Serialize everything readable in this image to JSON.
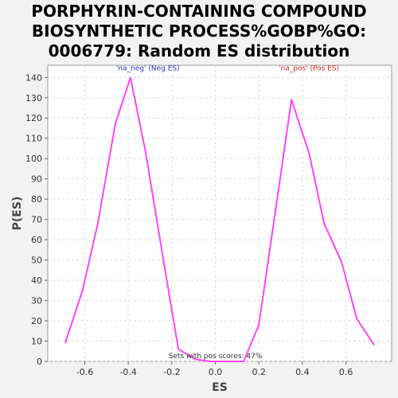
{
  "title_lines": [
    "PORPHYRIN-CONTAINING COMPOUND",
    "BIOSYNTHETIC PROCESS%GOBP%GO:",
    "0006779: Random ES distribution"
  ],
  "colors": {
    "line": "#ff44ff",
    "neg_label": "#3333cc",
    "pos_label": "#dd2222",
    "grid": "#dddddd",
    "plot_bg": "#ffffff",
    "page_bg": "#f2f2f2"
  },
  "chart_data": {
    "type": "line",
    "xlabel": "ES",
    "ylabel": "P(ES)",
    "xlim": [
      -0.77,
      0.81
    ],
    "ylim": [
      0,
      146
    ],
    "xticks": [
      -0.6,
      -0.4,
      -0.2,
      0.0,
      0.2,
      0.4,
      0.6
    ],
    "xtick_labels": [
      "-0.6",
      "-0.4",
      "-0.2",
      "0.0",
      "0.2",
      "0.4",
      "0.6"
    ],
    "yticks": [
      0,
      10,
      20,
      30,
      40,
      50,
      60,
      70,
      80,
      90,
      100,
      110,
      120,
      130,
      140
    ],
    "grid": true,
    "series": [
      {
        "name": "",
        "x": [
          -0.69,
          -0.61,
          -0.54,
          -0.46,
          -0.39,
          -0.32,
          -0.24,
          -0.17,
          -0.09,
          -0.02,
          0.06,
          0.13,
          0.2,
          0.28,
          0.35,
          0.43,
          0.5,
          0.58,
          0.65,
          0.73
        ],
        "y": [
          9,
          35,
          68,
          117,
          140,
          103,
          51,
          6,
          1,
          0,
          0,
          0,
          18,
          77,
          129,
          103,
          68,
          49,
          21,
          8
        ]
      }
    ],
    "annotations": [
      {
        "text": "'na_neg' (Neg ES)",
        "x": -0.31,
        "y": 143.5,
        "color": "#3333cc"
      },
      {
        "text": "'na_pos' (Pos ES)",
        "x": 0.43,
        "y": 143.5,
        "color": "#dd2222"
      },
      {
        "text": "Sets with pos scores: 47%",
        "x": 0.0,
        "y": 1.5,
        "color": "#333333"
      }
    ]
  }
}
